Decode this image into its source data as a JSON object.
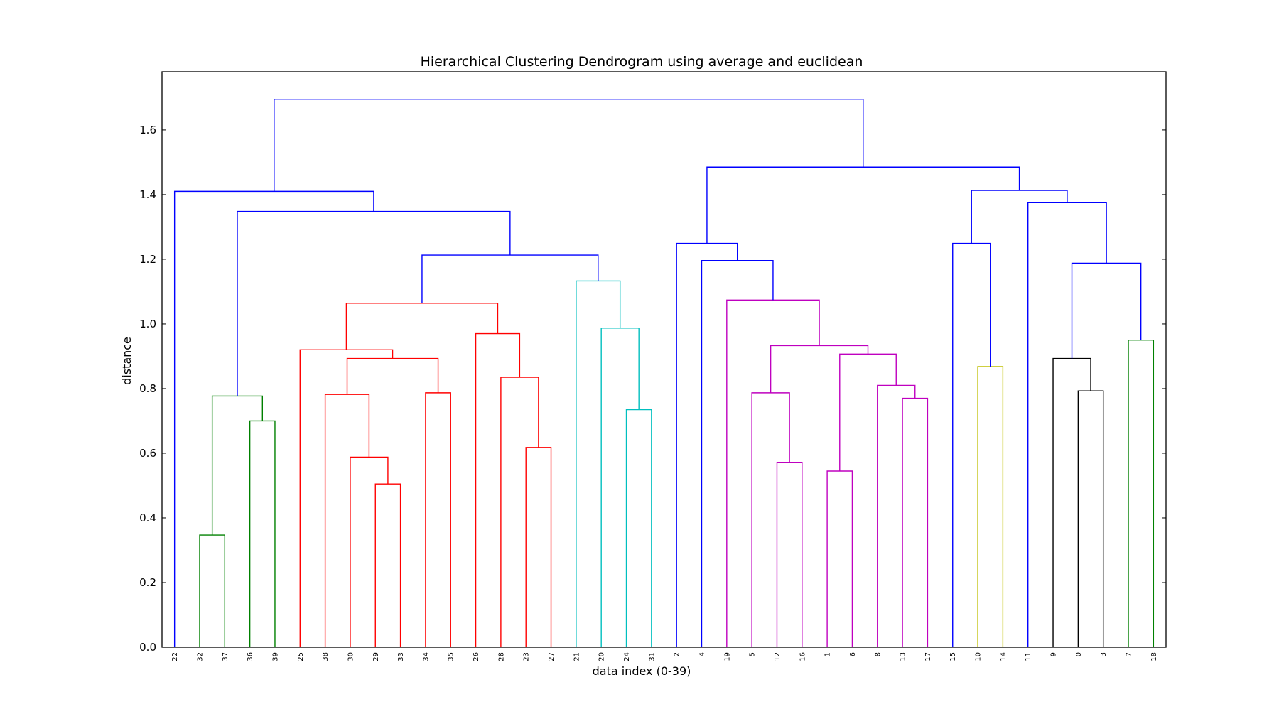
{
  "chart_data": {
    "type": "dendrogram",
    "title": "Hierarchical Clustering Dendrogram using average and euclidean",
    "xlabel": "data index (0-39)",
    "ylabel": "distance",
    "ylim": [
      0,
      1.78
    ],
    "yticks": [
      "0.0",
      "0.2",
      "0.4",
      "0.6",
      "0.8",
      "1.0",
      "1.2",
      "1.4",
      "1.6"
    ],
    "grid": false,
    "leaves": [
      22,
      32,
      37,
      36,
      39,
      25,
      38,
      30,
      29,
      33,
      34,
      35,
      26,
      28,
      23,
      27,
      21,
      20,
      24,
      31,
      2,
      4,
      19,
      5,
      12,
      16,
      1,
      6,
      8,
      13,
      17,
      15,
      10,
      14,
      11,
      9,
      0,
      3,
      7,
      18
    ],
    "colors": {
      "g": "#008000",
      "r": "#ff0000",
      "c": "#00bfbf",
      "m": "#bf00bf",
      "y": "#bfbf00",
      "k": "#000000",
      "b": "#0000ff"
    },
    "merges": [
      {
        "a": "32",
        "b": "37",
        "h": 0.347,
        "c": "g"
      },
      {
        "a": "36",
        "b": "39",
        "h": 0.7,
        "c": "g"
      },
      {
        "a": "32+37",
        "b": "36+39",
        "h": 0.777,
        "c": "g"
      },
      {
        "a": "29",
        "b": "33",
        "h": 0.505,
        "c": "r"
      },
      {
        "a": "30",
        "b": "29+33",
        "h": 0.588,
        "c": "r"
      },
      {
        "a": "38",
        "b": "30+29+33",
        "h": 0.782,
        "c": "r"
      },
      {
        "a": "34",
        "b": "35",
        "h": 0.787,
        "c": "r"
      },
      {
        "a": "38+30+29+33",
        "b": "34+35",
        "h": 0.893,
        "c": "r"
      },
      {
        "a": "25",
        "b": "38+30+29+33+34+35",
        "h": 0.92,
        "c": "r"
      },
      {
        "a": "23",
        "b": "27",
        "h": 0.618,
        "c": "r"
      },
      {
        "a": "28",
        "b": "23+27",
        "h": 0.835,
        "c": "r"
      },
      {
        "a": "26",
        "b": "28+23+27",
        "h": 0.97,
        "c": "r"
      },
      {
        "a": "25+38+30+29+33+34+35",
        "b": "26+28+23+27",
        "h": 1.064,
        "c": "r"
      },
      {
        "a": "24",
        "b": "31",
        "h": 0.735,
        "c": "c"
      },
      {
        "a": "20",
        "b": "24+31",
        "h": 0.987,
        "c": "c"
      },
      {
        "a": "21",
        "b": "20+24+31",
        "h": 1.133,
        "c": "c"
      },
      {
        "a": "25+38+30+29+33+34+35+26+28+23+27",
        "b": "21+20+24+31",
        "h": 1.213,
        "c": "b"
      },
      {
        "a": "32+37+36+39",
        "b": "25+38+30+29+33+34+35+26+28+23+27+21+20+24+31",
        "h": 1.348,
        "c": "b"
      },
      {
        "a": "22",
        "b": "32+37+36+39+25+38+30+29+33+34+35+26+28+23+27+21+20+24+31",
        "h": 1.41,
        "c": "b"
      },
      {
        "a": "12",
        "b": "16",
        "h": 0.572,
        "c": "m"
      },
      {
        "a": "5",
        "b": "12+16",
        "h": 0.787,
        "c": "m"
      },
      {
        "a": "1",
        "b": "6",
        "h": 0.545,
        "c": "m"
      },
      {
        "a": "13",
        "b": "17",
        "h": 0.77,
        "c": "m"
      },
      {
        "a": "8",
        "b": "13+17",
        "h": 0.81,
        "c": "m"
      },
      {
        "a": "1+6",
        "b": "8+13+17",
        "h": 0.907,
        "c": "m"
      },
      {
        "a": "5+12+16",
        "b": "1+6+8+13+17",
        "h": 0.933,
        "c": "m"
      },
      {
        "a": "19",
        "b": "5+12+16+1+6+8+13+17",
        "h": 1.074,
        "c": "m"
      },
      {
        "a": "4",
        "b": "19+5+12+16+1+6+8+13+17",
        "h": 1.196,
        "c": "b"
      },
      {
        "a": "2",
        "b": "4+19+5+12+16+1+6+8+13+17",
        "h": 1.249,
        "c": "b"
      },
      {
        "a": "10",
        "b": "14",
        "h": 0.868,
        "c": "y"
      },
      {
        "a": "15",
        "b": "10+14",
        "h": 1.249,
        "c": "b"
      },
      {
        "a": "0",
        "b": "3",
        "h": 0.793,
        "c": "k"
      },
      {
        "a": "9",
        "b": "0+3",
        "h": 0.893,
        "c": "k"
      },
      {
        "a": "7",
        "b": "18",
        "h": 0.95,
        "c": "g"
      },
      {
        "a": "9+0+3",
        "b": "7+18",
        "h": 1.188,
        "c": "b"
      },
      {
        "a": "11",
        "b": "9+0+3+7+18",
        "h": 1.375,
        "c": "b"
      },
      {
        "a": "15+10+14",
        "b": "11+9+0+3+7+18",
        "h": 1.413,
        "c": "b"
      },
      {
        "a": "2+4+19+5+12+16+1+6+8+13+17",
        "b": "15+10+14+11+9+0+3+7+18",
        "h": 1.485,
        "c": "b"
      },
      {
        "a": "22+32+37+36+39+25+38+30+29+33+34+35+26+28+23+27+21+20+24+31",
        "b": "2+4+19+5+12+16+1+6+8+13+17+15+10+14+11+9+0+3+7+18",
        "h": 1.695,
        "c": "b"
      }
    ]
  }
}
